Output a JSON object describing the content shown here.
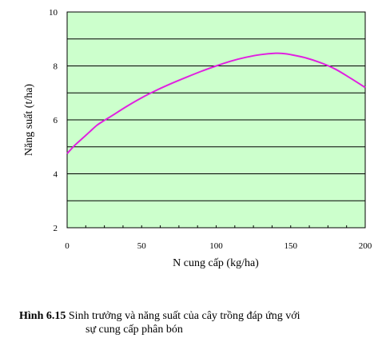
{
  "chart_data": {
    "type": "line",
    "xlabel": "N cung cấp (kg/ha)",
    "ylabel": "Năng suất (t/ha)",
    "xlim": [
      0,
      200
    ],
    "ylim": [
      2,
      10
    ],
    "xticks": [
      0,
      50,
      100,
      150,
      200
    ],
    "yticks": [
      2,
      4,
      6,
      8,
      10
    ],
    "grid": "horizontal",
    "plot_background": "#ccffcc",
    "line_color": "#e020e0",
    "series": [
      {
        "x": [
          0,
          5,
          10,
          15,
          20,
          25,
          30,
          40,
          50,
          60,
          70,
          80,
          90,
          100,
          110,
          120,
          130,
          140,
          145,
          150,
          160,
          170,
          180,
          190,
          200
        ],
        "values": [
          4.75,
          5.05,
          5.3,
          5.55,
          5.8,
          5.98,
          6.15,
          6.5,
          6.82,
          7.1,
          7.35,
          7.58,
          7.8,
          8.0,
          8.18,
          8.32,
          8.42,
          8.47,
          8.46,
          8.42,
          8.3,
          8.12,
          7.88,
          7.55,
          7.2
        ]
      }
    ]
  },
  "caption": {
    "label": "Hình 6.15",
    "line1": "Sinh trưởng và năng suất của cây trồng đáp ứng với",
    "line2": "sự cung cấp phân bón"
  }
}
